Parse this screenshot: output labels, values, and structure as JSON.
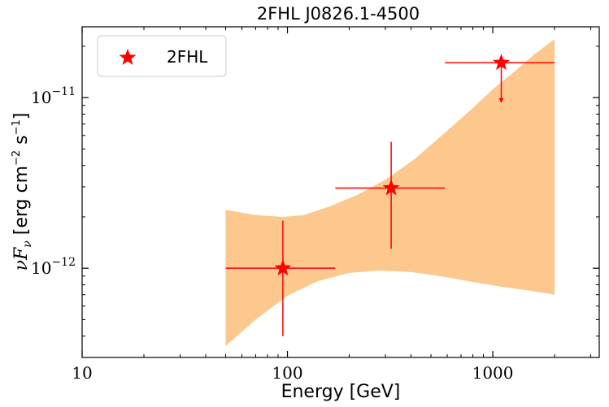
{
  "chart_data": {
    "type": "scatter",
    "title": "2FHL  J0826.1-4500",
    "xlabel": "Energy [GeV]",
    "ylabel_prefix": "νF",
    "ylabel_sub": "ν",
    "ylabel_rest": " [erg cm",
    "ylabel_sup1": "−2",
    "ylabel_mid": " s",
    "ylabel_sup2": "−1",
    "ylabel_end": "]",
    "xscale": "log",
    "yscale": "log",
    "xlim": [
      10,
      3300
    ],
    "ylim": [
      3e-13,
      2.6e-11
    ],
    "x_ticks": [
      {
        "value": 10,
        "label": "10"
      },
      {
        "value": 100,
        "label": "100"
      },
      {
        "value": 1000,
        "label": "1000"
      }
    ],
    "y_ticks": [
      {
        "value": 1e-12,
        "base": "10",
        "exp": "−12"
      },
      {
        "value": 1e-11,
        "base": "10",
        "exp": "−11"
      }
    ],
    "legend": {
      "location": "upper left",
      "entries": [
        {
          "label": "2FHL",
          "marker": "star",
          "color": "#ff0000"
        }
      ]
    },
    "series": [
      {
        "name": "2FHL",
        "color": "#ff0000",
        "marker": "star",
        "points": [
          {
            "x": 95,
            "y": 1e-12,
            "x_low": 50,
            "x_high": 171,
            "y_low": 4e-13,
            "y_high": 1.9e-12,
            "upper_limit": false
          },
          {
            "x": 320,
            "y": 2.95e-12,
            "x_low": 171,
            "x_high": 585,
            "y_low": 1.3e-12,
            "y_high": 5.5e-12,
            "upper_limit": false
          },
          {
            "x": 1100,
            "y": 1.6e-11,
            "x_low": 585,
            "x_high": 2000,
            "y_low": 9.3e-12,
            "y_high": 1.6e-11,
            "upper_limit": true
          }
        ]
      }
    ],
    "band": {
      "color": "#fdc88e",
      "upper": [
        [
          50,
          2.2e-12
        ],
        [
          70,
          2.05e-12
        ],
        [
          95,
          2e-12
        ],
        [
          120,
          2.05e-12
        ],
        [
          160,
          2.3e-12
        ],
        [
          220,
          2.7e-12
        ],
        [
          300,
          3.3e-12
        ],
        [
          420,
          4.4e-12
        ],
        [
          600,
          6.4e-12
        ],
        [
          800,
          8.7e-12
        ],
        [
          1000,
          1.12e-11
        ],
        [
          1300,
          1.45e-11
        ],
        [
          1600,
          1.8e-11
        ],
        [
          2000,
          2.2e-11
        ]
      ],
      "lower": [
        [
          50,
          3.5e-13
        ],
        [
          70,
          5e-13
        ],
        [
          100,
          6.9e-13
        ],
        [
          140,
          8.4e-13
        ],
        [
          200,
          9.4e-13
        ],
        [
          280,
          9.7e-13
        ],
        [
          400,
          9.5e-13
        ],
        [
          550,
          9e-13
        ],
        [
          800,
          8.3e-13
        ],
        [
          1100,
          7.8e-13
        ],
        [
          1500,
          7.4e-13
        ],
        [
          2000,
          7e-13
        ]
      ]
    }
  }
}
